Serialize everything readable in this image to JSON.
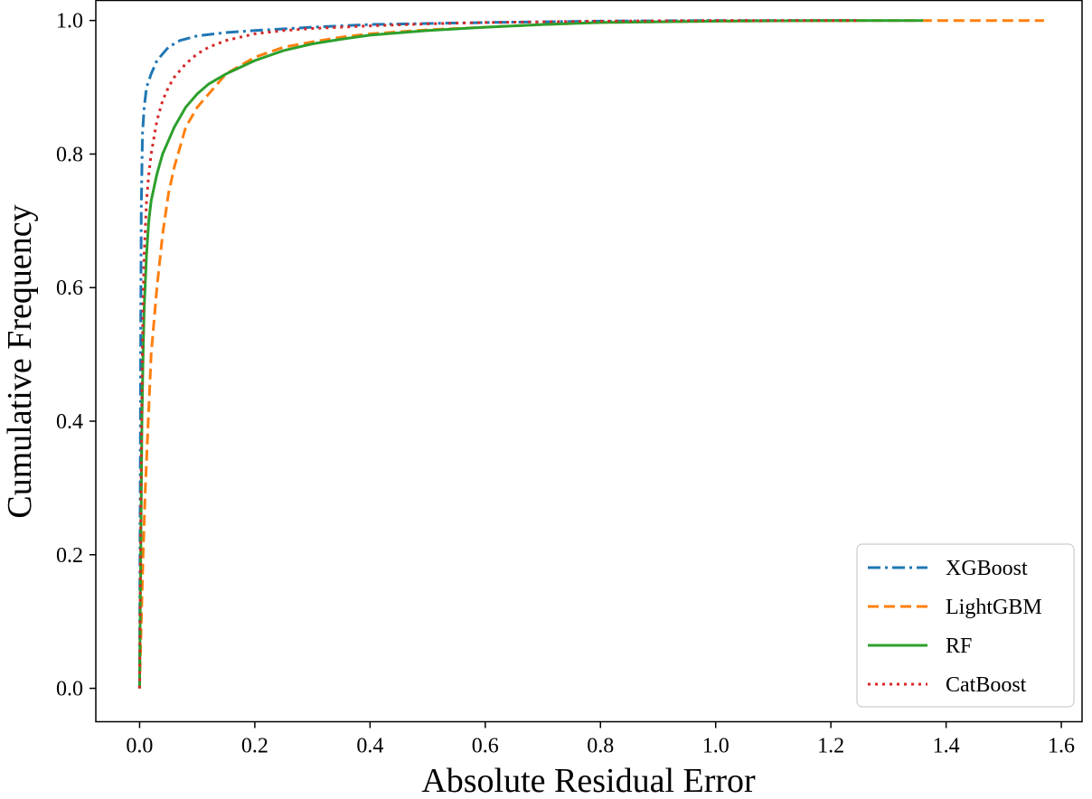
{
  "chart_data": {
    "type": "line",
    "title": "",
    "xlabel": "Absolute Residual Error",
    "ylabel": "Cumulative Frequency",
    "xlim": [
      -0.076,
      1.636
    ],
    "ylim": [
      -0.05,
      1.03
    ],
    "xticks": [
      0.0,
      0.2,
      0.4,
      0.6,
      0.8,
      1.0,
      1.2,
      1.4,
      1.6
    ],
    "xtick_labels": [
      "0.0",
      "0.2",
      "0.4",
      "0.6",
      "0.8",
      "1.0",
      "1.2",
      "1.4",
      "1.6"
    ],
    "yticks": [
      0.0,
      0.2,
      0.4,
      0.6,
      0.8,
      1.0
    ],
    "ytick_labels": [
      "0.0",
      "0.2",
      "0.4",
      "0.6",
      "0.8",
      "1.0"
    ],
    "grid": false,
    "legend": {
      "position": "bottom-right"
    },
    "series": [
      {
        "name": "XGBoost",
        "color": "#1f77b4",
        "style": "dashdot",
        "x": [
          0.0,
          0.001,
          0.002,
          0.003,
          0.005,
          0.008,
          0.012,
          0.02,
          0.03,
          0.05,
          0.07,
          0.1,
          0.15,
          0.2,
          0.3,
          0.4,
          0.6,
          0.8,
          1.0,
          1.2,
          1.25
        ],
        "y": [
          0.0,
          0.3,
          0.55,
          0.72,
          0.83,
          0.87,
          0.9,
          0.92,
          0.94,
          0.96,
          0.97,
          0.977,
          0.982,
          0.985,
          0.99,
          0.994,
          0.997,
          0.999,
          1.0,
          1.0,
          1.0
        ]
      },
      {
        "name": "LightGBM",
        "color": "#ff7f0e",
        "style": "dashed",
        "x": [
          0.0,
          0.003,
          0.006,
          0.01,
          0.015,
          0.02,
          0.025,
          0.03,
          0.04,
          0.05,
          0.06,
          0.08,
          0.1,
          0.12,
          0.15,
          0.2,
          0.25,
          0.3,
          0.35,
          0.4,
          0.5,
          0.6,
          0.7,
          0.8,
          1.0,
          1.2,
          1.4,
          1.57
        ],
        "y": [
          0.0,
          0.1,
          0.2,
          0.3,
          0.4,
          0.5,
          0.55,
          0.6,
          0.68,
          0.74,
          0.78,
          0.84,
          0.87,
          0.89,
          0.92,
          0.945,
          0.96,
          0.968,
          0.975,
          0.98,
          0.986,
          0.99,
          0.994,
          0.997,
          0.999,
          1.0,
          1.0,
          1.0
        ]
      },
      {
        "name": "RF",
        "color": "#2ca02c",
        "style": "solid",
        "x": [
          0.0,
          0.002,
          0.004,
          0.006,
          0.008,
          0.012,
          0.016,
          0.02,
          0.03,
          0.04,
          0.05,
          0.06,
          0.08,
          0.1,
          0.12,
          0.15,
          0.2,
          0.25,
          0.3,
          0.35,
          0.4,
          0.5,
          0.6,
          0.7,
          0.8,
          1.0,
          1.2,
          1.36
        ],
        "y": [
          0.0,
          0.2,
          0.4,
          0.5,
          0.57,
          0.65,
          0.7,
          0.73,
          0.77,
          0.8,
          0.82,
          0.84,
          0.87,
          0.89,
          0.905,
          0.92,
          0.94,
          0.955,
          0.965,
          0.972,
          0.978,
          0.985,
          0.99,
          0.994,
          0.997,
          0.999,
          1.0,
          1.0
        ]
      },
      {
        "name": "CatBoost",
        "color": "#d62728",
        "style": "dotted",
        "x": [
          0.0,
          0.002,
          0.004,
          0.006,
          0.008,
          0.012,
          0.016,
          0.02,
          0.03,
          0.04,
          0.05,
          0.06,
          0.08,
          0.1,
          0.12,
          0.15,
          0.2,
          0.25,
          0.3,
          0.4,
          0.5,
          0.6,
          0.8,
          1.0,
          1.25
        ],
        "y": [
          0.0,
          0.25,
          0.45,
          0.58,
          0.65,
          0.73,
          0.77,
          0.8,
          0.85,
          0.88,
          0.9,
          0.915,
          0.935,
          0.95,
          0.96,
          0.97,
          0.98,
          0.985,
          0.988,
          0.992,
          0.995,
          0.997,
          0.999,
          1.0,
          1.0
        ]
      }
    ]
  }
}
